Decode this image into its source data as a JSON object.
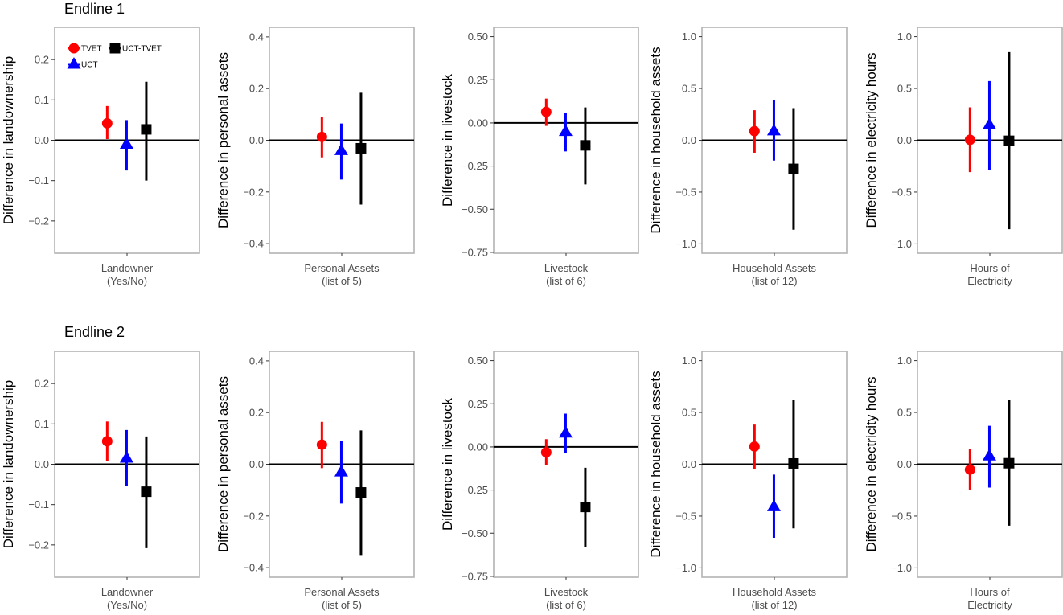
{
  "chart_data": {
    "type": "scatter",
    "subtype": "point-with-confidence-intervals",
    "legend": {
      "placement": "top-left inside first panel",
      "entries": [
        {
          "name": "TVET",
          "marker": "circle",
          "color": "#ff0000"
        },
        {
          "name": "UCT-TVET",
          "marker": "square",
          "color": "#000000"
        },
        {
          "name": "UCT",
          "marker": "triangle",
          "color": "#0000ff"
        }
      ]
    },
    "reference_line": 0,
    "series_order": [
      "TVET",
      "UCT",
      "UCT-TVET"
    ],
    "rows": [
      {
        "title": "Endline 1",
        "panels": [
          {
            "ylabel": "Difference in landownership",
            "category": [
              "Landowner",
              "(Yes/No)"
            ],
            "ylim": [
              -0.28,
              0.28
            ],
            "yticks": [
              -0.2,
              -0.1,
              0.0,
              0.1,
              0.2
            ],
            "ytick_labels": [
              "−0.2",
              "−0.1",
              "0.0",
              "0.1",
              "0.2"
            ],
            "points": [
              {
                "series": "TVET",
                "estimate": 0.042,
                "ci_low": 0.003,
                "ci_high": 0.085
              },
              {
                "series": "UCT",
                "estimate": -0.01,
                "ci_low": -0.075,
                "ci_high": 0.05
              },
              {
                "series": "UCT-TVET",
                "estimate": 0.027,
                "ci_low": -0.1,
                "ci_high": 0.145
              }
            ]
          },
          {
            "ylabel": "Difference in personal assets",
            "category": [
              "Personal Assets",
              "(list of 5)"
            ],
            "ylim": [
              -0.437,
              0.437
            ],
            "yticks": [
              -0.4,
              -0.2,
              0.0,
              0.2,
              0.4
            ],
            "ytick_labels": [
              "−0.4",
              "−0.2",
              "0.0",
              "0.2",
              "0.4"
            ],
            "points": [
              {
                "series": "TVET",
                "estimate": 0.013,
                "ci_low": -0.066,
                "ci_high": 0.089
              },
              {
                "series": "UCT",
                "estimate": -0.04,
                "ci_low": -0.152,
                "ci_high": 0.065
              },
              {
                "series": "UCT-TVET",
                "estimate": -0.031,
                "ci_low": -0.249,
                "ci_high": 0.184
              }
            ]
          },
          {
            "ylabel": "Difference in livestock",
            "category": [
              "Livestock",
              "(list of 6)"
            ],
            "ylim": [
              -0.755,
              0.554
            ],
            "yticks": [
              -0.75,
              -0.5,
              -0.25,
              0.0,
              0.25,
              0.5
            ],
            "ytick_labels": [
              "−0.75",
              "−0.50",
              "−0.25",
              "0.00",
              "0.25",
              "0.50"
            ],
            "points": [
              {
                "series": "TVET",
                "estimate": 0.064,
                "ci_low": -0.017,
                "ci_high": 0.141
              },
              {
                "series": "UCT",
                "estimate": -0.05,
                "ci_low": -0.165,
                "ci_high": 0.06
              },
              {
                "series": "UCT-TVET",
                "estimate": -0.13,
                "ci_low": -0.356,
                "ci_high": 0.09
              }
            ]
          },
          {
            "ylabel": "Difference in household assets",
            "category": [
              "Household Assets",
              "(list of 12)"
            ],
            "ylim": [
              -1.09,
              1.09
            ],
            "yticks": [
              -1.0,
              -0.5,
              0.0,
              0.5,
              1.0
            ],
            "ytick_labels": [
              "−1.0",
              "−0.5",
              "0.0",
              "0.5",
              "1.0"
            ],
            "points": [
              {
                "series": "TVET",
                "estimate": 0.088,
                "ci_low": -0.12,
                "ci_high": 0.29
              },
              {
                "series": "UCT",
                "estimate": 0.09,
                "ci_low": -0.196,
                "ci_high": 0.385
              },
              {
                "series": "UCT-TVET",
                "estimate": -0.276,
                "ci_low": -0.863,
                "ci_high": 0.31
              }
            ]
          },
          {
            "ylabel": "Difference in electricity hours",
            "category": [
              "Hours of",
              "Electricity"
            ],
            "ylim": [
              -1.09,
              1.09
            ],
            "yticks": [
              -1.0,
              -0.5,
              0.0,
              0.5,
              1.0
            ],
            "ytick_labels": [
              "−1.0",
              "−0.5",
              "0.0",
              "0.5",
              "1.0"
            ],
            "points": [
              {
                "series": "TVET",
                "estimate": 0.005,
                "ci_low": -0.307,
                "ci_high": 0.318
              },
              {
                "series": "UCT",
                "estimate": 0.15,
                "ci_low": -0.284,
                "ci_high": 0.571
              },
              {
                "series": "UCT-TVET",
                "estimate": -0.005,
                "ci_low": -0.858,
                "ci_high": 0.85
              }
            ]
          }
        ]
      },
      {
        "title": "Endline 2",
        "panels": [
          {
            "ylabel": "Difference in landownership",
            "category": [
              "Landowner",
              "(Yes/No)"
            ],
            "ylim": [
              -0.28,
              0.28
            ],
            "yticks": [
              -0.2,
              -0.1,
              0.0,
              0.1,
              0.2
            ],
            "ytick_labels": [
              "−0.2",
              "−0.1",
              "0.0",
              "0.1",
              "0.2"
            ],
            "points": [
              {
                "series": "TVET",
                "estimate": 0.057,
                "ci_low": 0.008,
                "ci_high": 0.106
              },
              {
                "series": "UCT",
                "estimate": 0.015,
                "ci_low": -0.053,
                "ci_high": 0.085
              },
              {
                "series": "UCT-TVET",
                "estimate": -0.068,
                "ci_low": -0.208,
                "ci_high": 0.069
              }
            ]
          },
          {
            "ylabel": "Difference in personal assets",
            "category": [
              "Personal Assets",
              "(list of 5)"
            ],
            "ylim": [
              -0.437,
              0.437
            ],
            "yticks": [
              -0.4,
              -0.2,
              0.0,
              0.2,
              0.4
            ],
            "ytick_labels": [
              "−0.4",
              "−0.2",
              "0.0",
              "0.2",
              "0.4"
            ],
            "points": [
              {
                "series": "TVET",
                "estimate": 0.076,
                "ci_low": -0.015,
                "ci_high": 0.164
              },
              {
                "series": "UCT",
                "estimate": -0.03,
                "ci_low": -0.152,
                "ci_high": 0.089
              },
              {
                "series": "UCT-TVET",
                "estimate": -0.109,
                "ci_low": -0.351,
                "ci_high": 0.131
              }
            ]
          },
          {
            "ylabel": "Difference in livestock",
            "category": [
              "Livestock",
              "(list of 6)"
            ],
            "ylim": [
              -0.755,
              0.554
            ],
            "yticks": [
              -0.75,
              -0.5,
              -0.25,
              0.0,
              0.25,
              0.5
            ],
            "ytick_labels": [
              "−0.75",
              "−0.50",
              "−0.25",
              "0.00",
              "0.25",
              "0.50"
            ],
            "points": [
              {
                "series": "TVET",
                "estimate": -0.031,
                "ci_low": -0.106,
                "ci_high": 0.045
              },
              {
                "series": "UCT",
                "estimate": 0.08,
                "ci_low": -0.036,
                "ci_high": 0.193
              },
              {
                "series": "UCT-TVET",
                "estimate": -0.348,
                "ci_low": -0.579,
                "ci_high": -0.121
              }
            ]
          },
          {
            "ylabel": "Difference in household assets",
            "category": [
              "Household Assets",
              "(list of 12)"
            ],
            "ylim": [
              -1.09,
              1.09
            ],
            "yticks": [
              -1.0,
              -0.5,
              0.0,
              0.5,
              1.0
            ],
            "ytick_labels": [
              "−1.0",
              "−0.5",
              "0.0",
              "0.5",
              "1.0"
            ],
            "points": [
              {
                "series": "TVET",
                "estimate": 0.171,
                "ci_low": -0.044,
                "ci_high": 0.383
              },
              {
                "series": "UCT",
                "estimate": -0.41,
                "ci_low": -0.71,
                "ci_high": -0.1
              },
              {
                "series": "UCT-TVET",
                "estimate": 0.008,
                "ci_low": -0.619,
                "ci_high": 0.624
              }
            ]
          },
          {
            "ylabel": "Difference in electricity hours",
            "category": [
              "Hours of",
              "Electricity"
            ],
            "ylim": [
              -1.09,
              1.09
            ],
            "yticks": [
              -1.0,
              -0.5,
              0.0,
              0.5,
              1.0
            ],
            "ytick_labels": [
              "−1.0",
              "−0.5",
              "0.0",
              "0.5",
              "1.0"
            ],
            "points": [
              {
                "series": "TVET",
                "estimate": -0.052,
                "ci_low": -0.251,
                "ci_high": 0.148
              },
              {
                "series": "UCT",
                "estimate": 0.08,
                "ci_low": -0.225,
                "ci_high": 0.371
              },
              {
                "series": "UCT-TVET",
                "estimate": 0.01,
                "ci_low": -0.593,
                "ci_high": 0.62
              }
            ]
          }
        ]
      }
    ]
  }
}
